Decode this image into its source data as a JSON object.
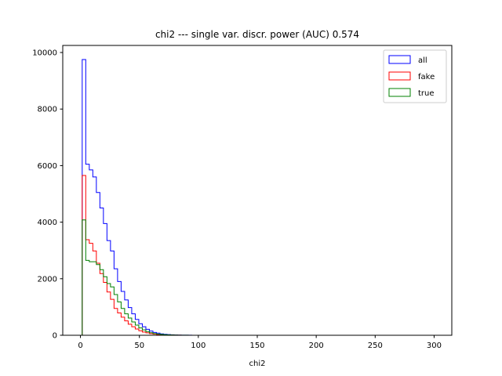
{
  "chart_data": {
    "type": "histogram",
    "title": "chi2 --- single var. discr. power (AUC) 0.574",
    "xlabel": "chi2",
    "ylabel": "",
    "xlim": [
      -15,
      315
    ],
    "ylim": [
      0,
      10250
    ],
    "xticks": [
      0,
      50,
      100,
      150,
      200,
      250,
      300
    ],
    "yticks": [
      0,
      2000,
      4000,
      6000,
      8000,
      10000
    ],
    "bin_width": 3,
    "bin_start": 1.5,
    "legend_position": "upper-right",
    "series": [
      {
        "name": "all",
        "color": "#0000ff",
        "values": [
          9750,
          6050,
          5850,
          5600,
          5050,
          4500,
          3950,
          3350,
          2980,
          2350,
          1900,
          1550,
          1250,
          980,
          760,
          560,
          410,
          300,
          210,
          150,
          100,
          75,
          50,
          35,
          25,
          16,
          10,
          6,
          4,
          3,
          2,
          1
        ]
      },
      {
        "name": "fake",
        "color": "#ff0000",
        "values": [
          5650,
          3380,
          3250,
          2980,
          2550,
          2180,
          1870,
          1530,
          1270,
          950,
          790,
          640,
          510,
          390,
          300,
          220,
          160,
          115,
          85,
          60,
          40,
          28,
          20,
          14,
          9,
          6,
          4,
          2,
          1,
          1,
          0,
          0
        ]
      },
      {
        "name": "true",
        "color": "#008000",
        "values": [
          4080,
          2650,
          2600,
          2600,
          2500,
          2320,
          2070,
          1830,
          1710,
          1440,
          1180,
          950,
          760,
          610,
          470,
          360,
          260,
          190,
          130,
          90,
          60,
          45,
          30,
          21,
          14,
          9,
          6,
          4,
          3,
          2,
          1,
          1
        ]
      }
    ]
  }
}
